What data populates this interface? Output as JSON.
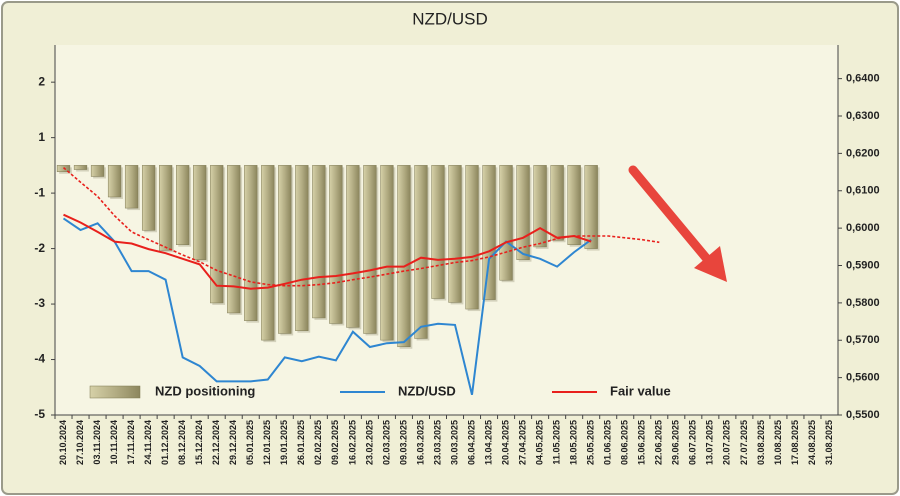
{
  "chart_data": {
    "type": "combo",
    "title": "NZD/USD",
    "categories": [
      "20.10.2024",
      "27.10.2024",
      "03.11.2024",
      "10.11.2024",
      "17.11.2024",
      "24.11.2024",
      "01.12.2024",
      "08.12.2024",
      "15.12.2024",
      "22.12.2024",
      "29.12.2024",
      "05.01.2025",
      "12.01.2025",
      "19.01.2025",
      "26.01.2025",
      "02.02.2025",
      "09.02.2025",
      "16.02.2025",
      "23.02.2025",
      "02.03.2025",
      "09.03.2025",
      "16.03.2025",
      "23.03.2025",
      "30.03.2025",
      "06.04.2025",
      "13.04.2025",
      "20.04.2025",
      "27.04.2025",
      "04.05.2025",
      "11.05.2025",
      "18.05.2025",
      "25.05.2025",
      "01.06.2025",
      "08.06.2025",
      "15.06.2025",
      "22.06.2025",
      "29.06.2025",
      "06.07.2025",
      "13.07.2025",
      "20.07.2025",
      "27.07.2025",
      "03.08.2025",
      "10.08.2025",
      "17.08.2025",
      "24.08.2025",
      "31.08.2025"
    ],
    "series": [
      {
        "name": "NZD positioning",
        "type": "bar",
        "color": "#a8a27a",
        "values": [
          -0.23,
          -0.15,
          -0.4,
          -1.07,
          -1.27,
          -1.67,
          -2.03,
          -1.93,
          -2.2,
          -2.98,
          -3.16,
          -3.3,
          -3.65,
          -3.53,
          -3.48,
          -3.25,
          -3.35,
          -3.42,
          -3.53,
          -3.65,
          -3.77,
          -3.62,
          -2.9,
          -2.97,
          -3.09,
          -2.92,
          -2.57,
          -2.2,
          -1.97,
          -1.85,
          -1.93,
          -2.0,
          null,
          null,
          null,
          null,
          null,
          null,
          null,
          null,
          null,
          null,
          null,
          null,
          null,
          null
        ]
      },
      {
        "name": "NZD/USD",
        "type": "line",
        "axis": "y2",
        "color": "#2e86d1",
        "values": [
          0.6026,
          0.5995,
          0.6013,
          0.5964,
          0.5885,
          0.5885,
          0.5862,
          0.5654,
          0.5631,
          0.559,
          0.559,
          0.559,
          0.5595,
          0.5654,
          0.5644,
          0.5656,
          0.5646,
          0.5723,
          0.5682,
          0.5692,
          0.5695,
          0.5736,
          0.5744,
          0.5741,
          0.5554,
          0.5918,
          0.5964,
          0.5931,
          0.5918,
          0.5897,
          0.5936,
          0.5969,
          null,
          null,
          null,
          null,
          null,
          null,
          null,
          null,
          null,
          null,
          null,
          null,
          null,
          null
        ]
      },
      {
        "name": "Fair value",
        "type": "line",
        "axis": "y2",
        "color": "#e8201c",
        "values": [
          0.6036,
          0.6015,
          0.599,
          0.5964,
          0.5959,
          0.5944,
          0.5933,
          0.5918,
          0.5903,
          0.5846,
          0.5844,
          0.5838,
          0.5841,
          0.5851,
          0.5862,
          0.5869,
          0.5872,
          0.5879,
          0.5887,
          0.5897,
          0.5897,
          0.5921,
          0.5915,
          0.5918,
          0.5923,
          0.5938,
          0.5962,
          0.5974,
          0.6,
          0.5974,
          0.5979,
          0.5964,
          null,
          null,
          null,
          null,
          null,
          null,
          null,
          null,
          null,
          null,
          null,
          null,
          null,
          null
        ]
      },
      {
        "type": "line",
        "axis": "y2",
        "dashed": true,
        "color": "#e8201c",
        "values": [
          0.6162,
          0.6123,
          0.6085,
          0.6033,
          0.599,
          0.5969,
          0.5949,
          0.5928,
          0.591,
          0.5887,
          0.5872,
          0.5856,
          0.5849,
          0.5846,
          0.5846,
          0.5849,
          0.5854,
          0.5862,
          0.5869,
          0.5877,
          0.5885,
          0.5892,
          0.59,
          0.5908,
          0.5913,
          0.5923,
          0.5936,
          0.5949,
          0.5959,
          0.5972,
          0.5979,
          0.5979,
          0.5979,
          0.5974,
          0.5969,
          0.5962,
          null,
          null,
          null,
          null,
          null,
          null,
          null,
          null,
          null,
          null
        ]
      }
    ],
    "ylim": [
      -5,
      2.67
    ],
    "yticks": [
      2,
      1,
      -1,
      -2,
      -3,
      -4,
      -5
    ],
    "y2lim": [
      0.55,
      0.649
    ],
    "y2ticks": [
      {
        "value": 0.64,
        "label": "0,6400"
      },
      {
        "value": 0.63,
        "label": "0,6300"
      },
      {
        "value": 0.62,
        "label": "0,6200"
      },
      {
        "value": 0.61,
        "label": "0,6100"
      },
      {
        "value": 0.6,
        "label": "0,6000"
      },
      {
        "value": 0.59,
        "label": "0,5900"
      },
      {
        "value": 0.58,
        "label": "0,5800"
      },
      {
        "value": 0.57,
        "label": "0,5700"
      },
      {
        "value": 0.56,
        "label": "0,5600"
      },
      {
        "value": 0.55,
        "label": "0,5500"
      }
    ],
    "legend": "bottom"
  }
}
